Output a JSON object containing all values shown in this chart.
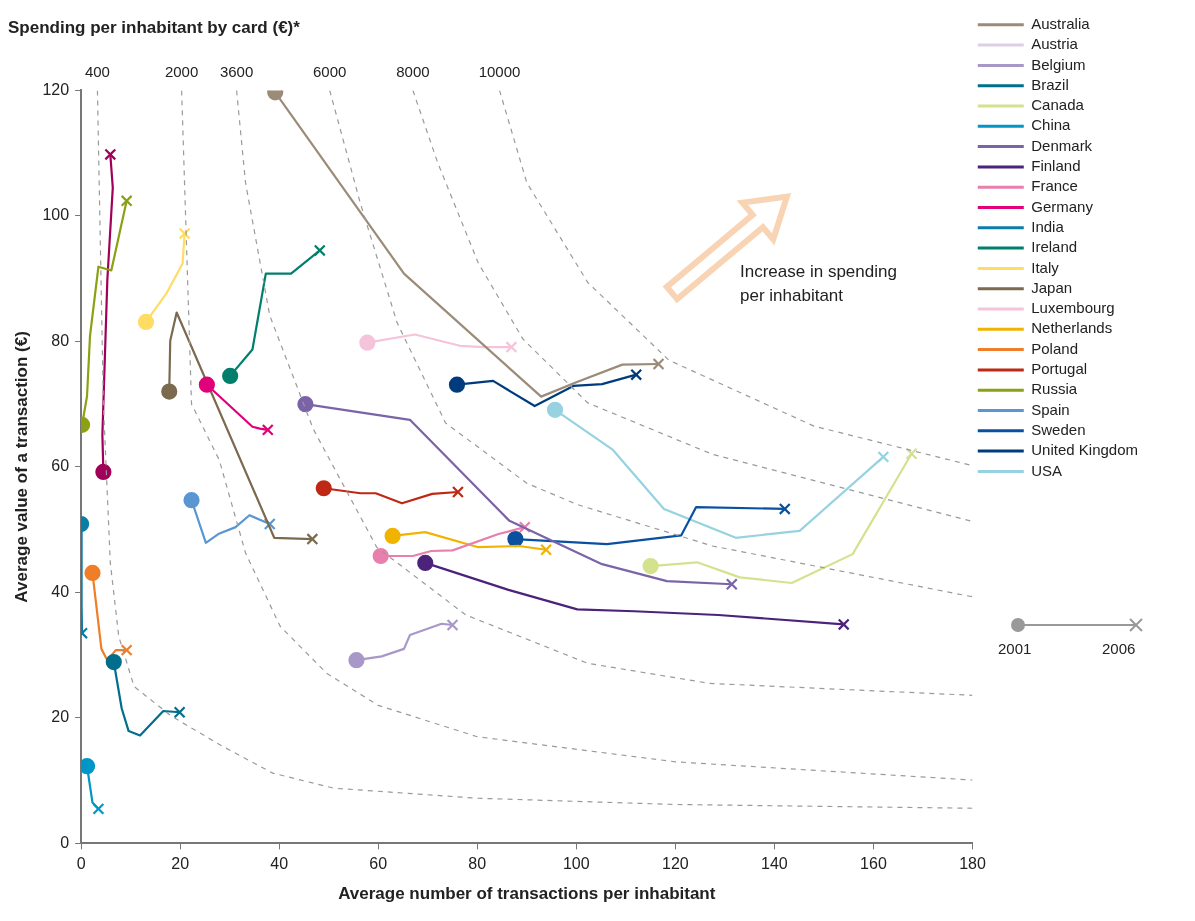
{
  "chart_data": {
    "type": "line",
    "title": "Spending per inhabitant by card (€)*",
    "xlabel": "Average number of transactions per inhabitant",
    "ylabel": "Average value of a transaction (€)",
    "xlim": [
      0,
      180
    ],
    "ylim": [
      0,
      120
    ],
    "xticks": [
      0,
      20,
      40,
      60,
      80,
      100,
      120,
      140,
      160,
      180
    ],
    "yticks": [
      0,
      20,
      40,
      60,
      80,
      100,
      120
    ],
    "legend": "right",
    "annotations": [
      "Increase in spending per inhabitant",
      "2001",
      "2006"
    ],
    "series": [
      {
        "name": "400",
        "color": "#9a9a9a",
        "line_style": "dashed",
        "marker": "none",
        "x": [
          3.3,
          4.5,
          5.9,
          7.6,
          10.7,
          18.2,
          28.5,
          38.7,
          51,
          80,
          120,
          180
        ],
        "values": [
          120,
          70,
          44.7,
          33,
          25,
          20.3,
          15.5,
          11.2,
          8.8,
          7.2,
          6.2,
          5.6
        ]
      },
      {
        "name": "2000",
        "color": "#9a9a9a",
        "line_style": "dashed",
        "marker": "none",
        "x": [
          20.3,
          22.3,
          27.9,
          33.2,
          40.2,
          49.6,
          60,
          80,
          120,
          180
        ],
        "values": [
          120,
          70,
          61.1,
          46.3,
          34.6,
          27.1,
          22,
          17,
          13,
          10.1
        ]
      },
      {
        "name": "3600",
        "color": "#9a9a9a",
        "line_style": "dashed",
        "marker": "none",
        "x": [
          31.4,
          33.2,
          38.1,
          46.9,
          59.7,
          77.7,
          102.3,
          126.9,
          180
        ],
        "values": [
          120,
          105.3,
          84.1,
          66,
          47.2,
          36.4,
          28.7,
          25.5,
          23.6
        ]
      },
      {
        "name": "6000",
        "color": "#9a9a9a",
        "line_style": "dashed",
        "marker": "none",
        "x": [
          50.2,
          56.4,
          63.8,
          73.6,
          90,
          100.2,
          127.5,
          180
        ],
        "values": [
          120,
          102,
          83,
          67,
          57.4,
          54,
          47.4,
          39.3
        ]
      },
      {
        "name": "8000",
        "color": "#9a9a9a",
        "line_style": "dashed",
        "marker": "none",
        "x": [
          67,
          72,
          80.2,
          89.2,
          102.3,
          127.5,
          180
        ],
        "values": [
          120,
          108.5,
          92.5,
          80.4,
          70.2,
          62,
          51.3
        ]
      },
      {
        "name": "10000",
        "color": "#9a9a9a",
        "line_style": "dashed",
        "marker": "none",
        "x": [
          84.5,
          90,
          102.3,
          118.7,
          148,
          180
        ],
        "values": [
          120,
          105.3,
          89.4,
          77,
          66.5,
          60.2
        ]
      },
      {
        "name": "Australia",
        "color": "#9b8b78",
        "x": [
          39.2,
          65.2,
          92.9,
          100,
          109.3,
          116.6
        ],
        "values": [
          119.7,
          90.8,
          71.2,
          73.5,
          76.3,
          76.4
        ]
      },
      {
        "name": "Austria",
        "color": "#ddd0e6"
      },
      {
        "name": "Belgium",
        "color": "#a898c8",
        "x": [
          55.6,
          60.7,
          65.2,
          66.4,
          72.8,
          75
        ],
        "values": [
          29.2,
          29.8,
          31,
          33.2,
          35,
          34.8
        ]
      },
      {
        "name": "Brazil",
        "color": "#006e8c",
        "x": [
          6.6,
          8.2,
          9.6,
          11.9,
          16.6,
          19.9
        ],
        "values": [
          28.9,
          21.5,
          17.9,
          17.2,
          21.1,
          20.9
        ]
      },
      {
        "name": "Canada",
        "color": "#d4e28e",
        "x": [
          115,
          124.4,
          133,
          143.5,
          155.8,
          167.7
        ],
        "values": [
          44.2,
          44.8,
          42.4,
          41.5,
          46.1,
          62.1
        ]
      },
      {
        "name": "China",
        "color": "#0096c8",
        "x": [
          1.2,
          2.3,
          3.5
        ],
        "values": [
          12.3,
          6.5,
          5.5
        ]
      },
      {
        "name": "Denmark",
        "color": "#7b63a8",
        "x": [
          45.3,
          66.4,
          86.5,
          105.2,
          118.3,
          131.4
        ],
        "values": [
          70,
          67.5,
          51.4,
          44.5,
          41.8,
          41.3
        ]
      },
      {
        "name": "Finland",
        "color": "#4b237a",
        "x": [
          69.5,
          86.3,
          100.2,
          111.7,
          128.7,
          154
        ],
        "values": [
          44.7,
          40.4,
          37.3,
          37,
          36.4,
          34.9
        ]
      },
      {
        "name": "France",
        "color": "#e87fac",
        "x": [
          60.5,
          67,
          70.7,
          75,
          84.3,
          89.6
        ],
        "values": [
          45.8,
          45.8,
          46.6,
          46.7,
          49.3,
          50.4
        ]
      },
      {
        "name": "Germany",
        "color": "#e0007a",
        "x": [
          25.4,
          34.6,
          36.1,
          37.7
        ],
        "values": [
          73.1,
          66.4,
          66.1,
          65.9
        ]
      },
      {
        "name": "India",
        "color": "#0a7ea8",
        "x": [
          0,
          0.1,
          0.2
        ],
        "values": [
          50.9,
          38,
          33.5
        ]
      },
      {
        "name": "Ireland",
        "color": "#00806c",
        "x": [
          30.1,
          34.6,
          37.3,
          42.4,
          48.2
        ],
        "values": [
          74.5,
          78.7,
          90.8,
          90.8,
          94.5
        ]
      },
      {
        "name": "Italy",
        "color": "#ffdc64",
        "x": [
          13.1,
          17.2,
          20.5,
          20.9
        ],
        "values": [
          83.1,
          87.6,
          92.4,
          97.2
        ]
      },
      {
        "name": "Japan",
        "color": "#7b6a4e",
        "x": [
          17.8,
          18,
          19.3,
          39,
          46.7
        ],
        "values": [
          72,
          80.1,
          84.6,
          48.7,
          48.5
        ]
      },
      {
        "name": "Luxembourg",
        "color": "#f5c3da",
        "x": [
          57.8,
          67.4,
          76.5,
          81.4,
          86.9
        ],
        "values": [
          79.8,
          81.1,
          79.3,
          79.1,
          79.1
        ]
      },
      {
        "name": "Netherlands",
        "color": "#f0b400",
        "x": [
          62.9,
          69.5,
          80.2,
          88.4,
          93.9
        ],
        "values": [
          49,
          49.6,
          47.2,
          47.4,
          46.8
        ]
      },
      {
        "name": "Poland",
        "color": "#f07d28",
        "x": [
          2.3,
          4.1,
          5.3,
          7,
          9.2
        ],
        "values": [
          43.1,
          31,
          29.2,
          30.8,
          30.8
        ]
      },
      {
        "name": "Portugal",
        "color": "#be2814",
        "x": [
          49,
          56.4,
          59.5,
          64.8,
          70.9,
          76.1
        ],
        "values": [
          56.6,
          55.8,
          55.8,
          54.2,
          55.7,
          56
        ]
      },
      {
        "name": "Russia",
        "color": "#8ca014",
        "x": [
          0.2,
          1.2,
          1.8,
          3.5,
          6.1,
          9.2
        ],
        "values": [
          66.7,
          71.3,
          80.9,
          91.9,
          91.3,
          102.4
        ]
      },
      {
        "name": "Spain",
        "color": "#5a96d2",
        "x": [
          22.3,
          25.2,
          27.7,
          31.2,
          34,
          38.1
        ],
        "values": [
          54.7,
          47.9,
          49.3,
          50.4,
          52.3,
          50.9
        ]
      },
      {
        "name": "Sweden",
        "color": "#0a50a0",
        "x": [
          87.7,
          106.2,
          121.2,
          124.2,
          142.1
        ],
        "values": [
          48.5,
          47.7,
          49.1,
          53.6,
          53.3
        ]
      },
      {
        "name": "United Kingdom",
        "color": "#003c7d",
        "x": [
          75.9,
          83.2,
          91.6,
          99.4,
          105.2,
          112.1
        ],
        "values": [
          73.1,
          73.7,
          69.7,
          72.9,
          73.2,
          74.7
        ]
      },
      {
        "name": "USA",
        "color": "#96d2e0",
        "x": [
          95.7,
          107.4,
          117.7,
          132.2,
          145.1,
          162
        ],
        "values": [
          69.1,
          62.7,
          53.3,
          48.7,
          49.8,
          61.6
        ]
      },
      {
        "color": "#a0005a",
        "x": [
          4.5,
          4.3,
          5.3,
          6.4,
          5.9
        ],
        "values": [
          59.2,
          65.1,
          89.8,
          104.5,
          109.8
        ]
      }
    ]
  }
}
